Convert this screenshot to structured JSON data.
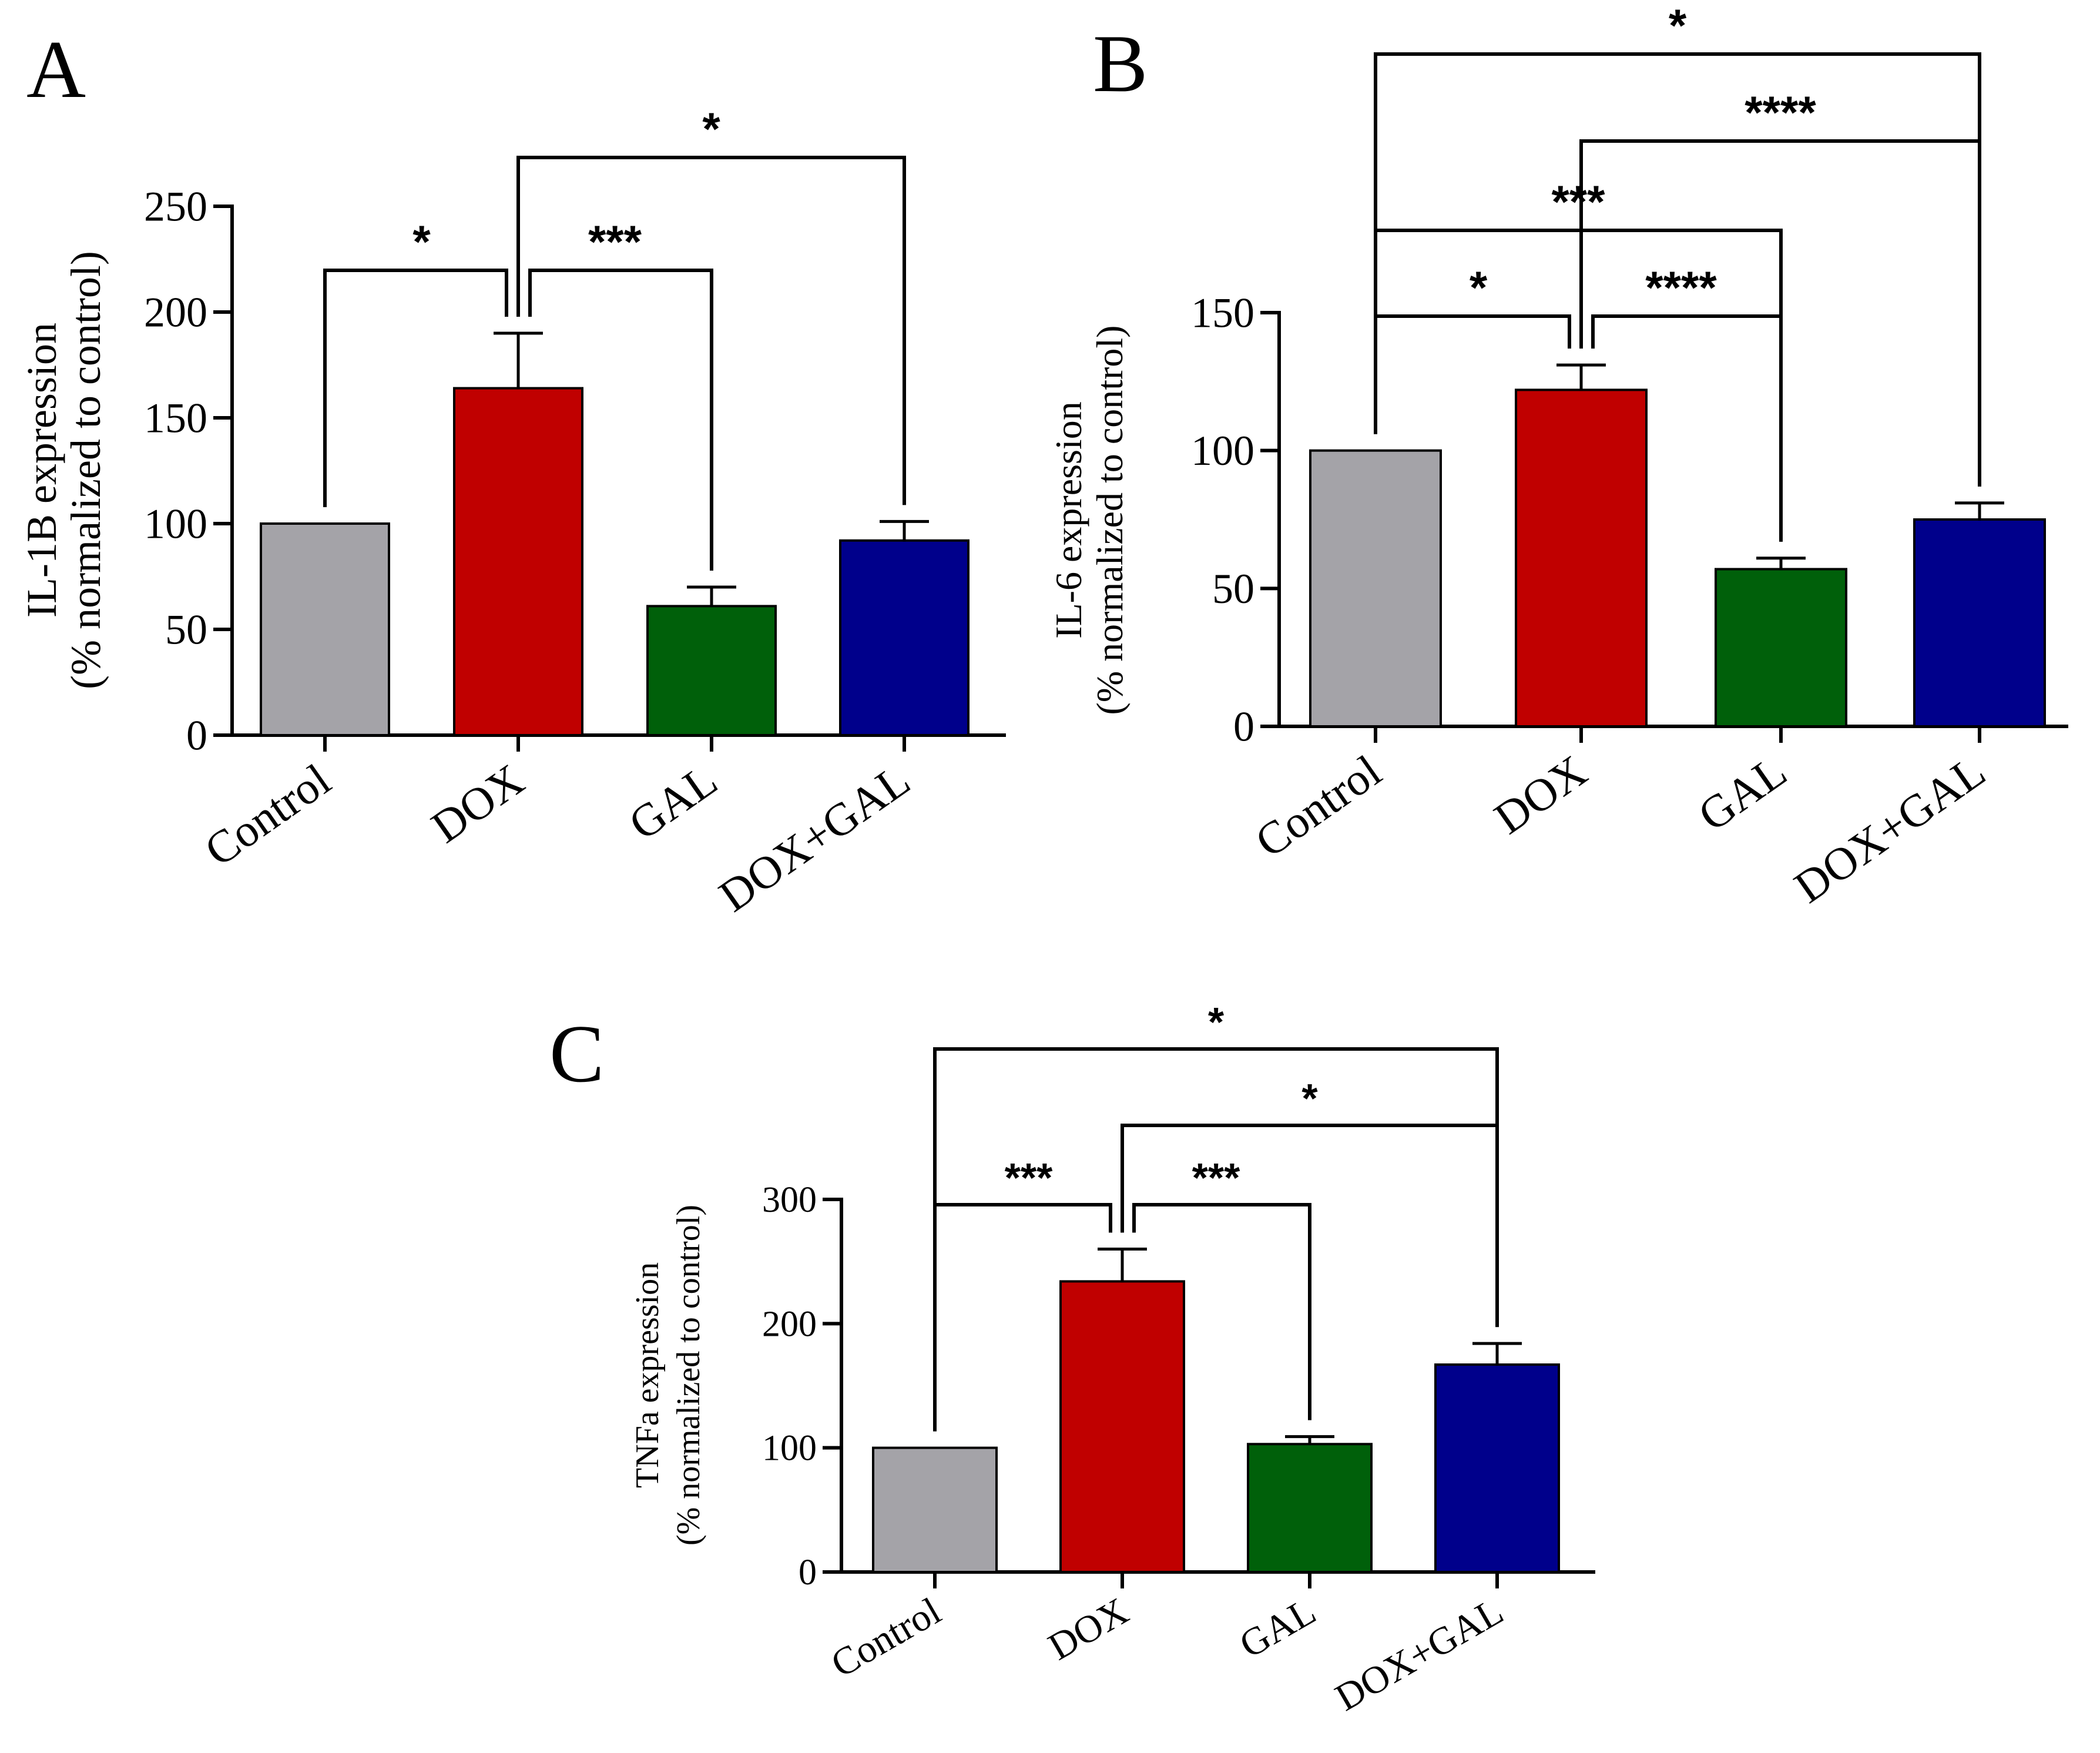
{
  "chart_data": [
    {
      "panel_label": "A",
      "type": "bar",
      "title": "",
      "xlabel": "",
      "ylabel_line1": "IL-1B expression",
      "ylabel_line2": "(% normalized to control)",
      "ylim": [
        0,
        250
      ],
      "yticks": [
        0,
        50,
        100,
        150,
        200,
        250
      ],
      "categories": [
        "Control",
        "DOX",
        "GAL",
        "DOX+GAL"
      ],
      "values": [
        100,
        164,
        61,
        92
      ],
      "errors": [
        0,
        26,
        9,
        9
      ],
      "comparisons": [
        {
          "from": 0,
          "to": 1,
          "label": "*"
        },
        {
          "from": 1,
          "to": 2,
          "label": "***"
        },
        {
          "from": 1,
          "to": 3,
          "label": "*"
        }
      ]
    },
    {
      "panel_label": "B",
      "type": "bar",
      "title": "",
      "xlabel": "",
      "ylabel_line1": "IL-6 expression",
      "ylabel_line2": "(% normalized to control)",
      "ylim": [
        0,
        150
      ],
      "yticks": [
        0,
        50,
        100,
        150
      ],
      "categories": [
        "Control",
        "DOX",
        "GAL",
        "DOX+GAL"
      ],
      "values": [
        100,
        122,
        57,
        75
      ],
      "errors": [
        0,
        9,
        4,
        6
      ],
      "comparisons": [
        {
          "from": 0,
          "to": 1,
          "label": "*"
        },
        {
          "from": 1,
          "to": 2,
          "label": "****"
        },
        {
          "from": 0,
          "to": 2,
          "label": "***"
        },
        {
          "from": 1,
          "to": 3,
          "label": "****"
        },
        {
          "from": 0,
          "to": 3,
          "label": "*"
        }
      ]
    },
    {
      "panel_label": "C",
      "type": "bar",
      "title": "",
      "xlabel": "",
      "ylabel_line1": "TNFa expression",
      "ylabel_line2": "(% normalized to control)",
      "ylim": [
        0,
        300
      ],
      "yticks": [
        0,
        100,
        200,
        300
      ],
      "categories": [
        "Control",
        "DOX",
        "GAL",
        "DOX+GAL"
      ],
      "values": [
        100,
        234,
        103,
        167
      ],
      "errors": [
        0,
        26,
        6,
        17
      ],
      "comparisons": [
        {
          "from": 0,
          "to": 1,
          "label": "***"
        },
        {
          "from": 1,
          "to": 2,
          "label": "***"
        },
        {
          "from": 1,
          "to": 3,
          "label": "*"
        },
        {
          "from": 0,
          "to": 3,
          "label": "*"
        }
      ]
    }
  ],
  "colors": {
    "Control": "#a4a3a8",
    "DOX": "#c00000",
    "GAL": "#00600a",
    "DOX+GAL": "#00008b",
    "ink": "#000000"
  }
}
